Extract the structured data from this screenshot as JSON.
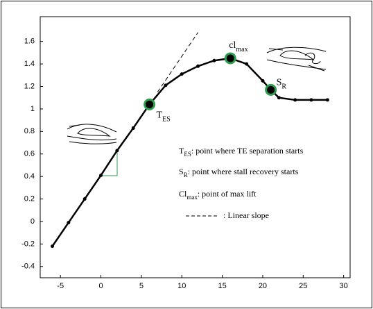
{
  "chart_data": {
    "type": "line",
    "x": [
      -6,
      -4,
      -2,
      0,
      2,
      4,
      6,
      8,
      10,
      12,
      14,
      16,
      18,
      20,
      21,
      22,
      24,
      26,
      28
    ],
    "series": [
      {
        "color": "#000000",
        "values": [
          -0.22,
          -0.01,
          0.2,
          0.41,
          0.63,
          0.83,
          1.04,
          1.21,
          1.31,
          1.38,
          1.43,
          1.45,
          1.4,
          1.25,
          1.17,
          1.1,
          1.08,
          1.08,
          1.08
        ]
      },
      {
        "name": ": Linear slope",
        "color": "#000000",
        "dashed": true,
        "x": [
          7,
          12
        ],
        "values": [
          1.15,
          1.68
        ]
      }
    ],
    "key_points": {
      "color": "#2e9e4f",
      "x": [
        6,
        16,
        21
      ],
      "values": [
        1.04,
        1.45,
        1.17
      ],
      "labels": [
        {
          "text": "T",
          "sub": "ES"
        },
        {
          "text": "cl",
          "sub": "max"
        },
        {
          "text": "S",
          "sub": "R"
        }
      ]
    },
    "notes": [
      {
        "symbol": "T",
        "sub": "ES",
        "text": ": point where TE separation starts"
      },
      {
        "symbol": "S",
        "sub": "R",
        "text": ": point where stall recovery starts"
      },
      {
        "symbol": "Cl",
        "sub": "max",
        "text": ": point of max lift"
      }
    ],
    "xlim": [
      -7.5,
      30.8
    ],
    "ylim": [
      -0.5,
      1.82
    ],
    "xticks": [
      -5,
      0,
      5,
      10,
      15,
      20,
      25,
      30
    ],
    "yticks": [
      -0.4,
      -0.2,
      0,
      0.2,
      0.4,
      0.6,
      0.8,
      1,
      1.2,
      1.4,
      1.6
    ]
  }
}
